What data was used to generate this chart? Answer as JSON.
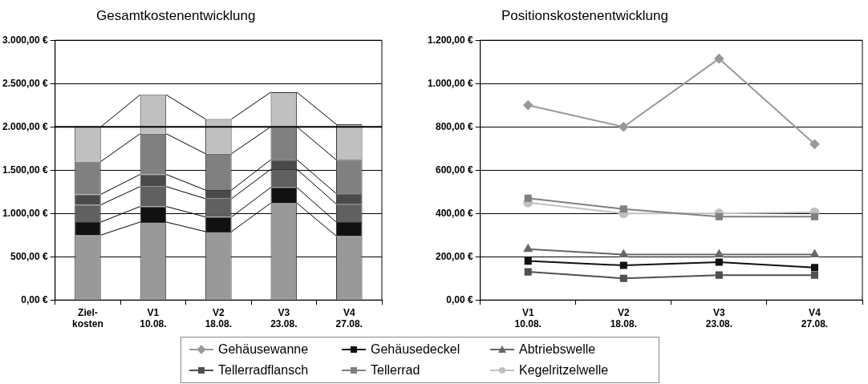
{
  "chart_data": [
    {
      "type": "bar",
      "title": "Gesamtkostenentwicklung",
      "stacked": true,
      "grid": "y",
      "legend": "bottom",
      "categories": [
        "Ziel-\nkosten",
        "V1\n10.08.",
        "V2\n18.08.",
        "V3\n23.08.",
        "V4\n27.08."
      ],
      "series": [
        {
          "name": "Gehäusewanne",
          "color": "#999999",
          "values": [
            750,
            900,
            790,
            1120,
            740
          ]
        },
        {
          "name": "Gehäusedeckel",
          "color": "#111111",
          "values": [
            150,
            180,
            170,
            180,
            160
          ]
        },
        {
          "name": "Abtriebswelle",
          "color": "#606060",
          "values": [
            200,
            230,
            210,
            210,
            210
          ]
        },
        {
          "name": "Tellerradflansch",
          "color": "#4a4a4a",
          "values": [
            120,
            140,
            100,
            110,
            120
          ]
        },
        {
          "name": "Tellerrad",
          "color": "#808080",
          "values": [
            380,
            470,
            420,
            380,
            390
          ]
        },
        {
          "name": "Kegelritzelwelle",
          "color": "#c0c0c0",
          "values": [
            400,
            450,
            400,
            400,
            410
          ]
        }
      ],
      "ylim": [
        0,
        3000
      ],
      "yticks": [
        {
          "value": 0,
          "label": "0,00 €"
        },
        {
          "value": 500,
          "label": "500,00 €"
        },
        {
          "value": 1000,
          "label": "1.000,00 €"
        },
        {
          "value": 1500,
          "label": "1.500,00 €"
        },
        {
          "value": 2000,
          "label": "2.000,00 €"
        },
        {
          "value": 2500,
          "label": "2.500,00 €"
        },
        {
          "value": 3000,
          "label": "3.000,00 €"
        }
      ],
      "ref_lines": [
        {
          "axis": "y",
          "value": 2000,
          "color": "#000000"
        }
      ]
    },
    {
      "type": "line",
      "title": "Positionskostenentwicklung",
      "grid": "y",
      "legend": "bottom",
      "categories": [
        "V1\n10.08.",
        "V2\n18.08.",
        "V3\n23.08.",
        "V4\n27.08."
      ],
      "series": [
        {
          "name": "Gehäusewanne",
          "color": "#999999",
          "marker": "diamond",
          "values": [
            900,
            800,
            1115,
            720
          ]
        },
        {
          "name": "Gehäusedeckel",
          "color": "#111111",
          "marker": "square",
          "values": [
            180,
            160,
            175,
            150
          ]
        },
        {
          "name": "Abtriebswelle",
          "color": "#666666",
          "marker": "triangle",
          "values": [
            235,
            210,
            210,
            210
          ]
        },
        {
          "name": "Tellerradflansch",
          "color": "#505050",
          "marker": "square",
          "values": [
            130,
            100,
            115,
            115
          ]
        },
        {
          "name": "Tellerrad",
          "color": "#808080",
          "marker": "square",
          "values": [
            470,
            420,
            385,
            385
          ]
        },
        {
          "name": "Kegelritzelwelle",
          "color": "#c0c0c0",
          "marker": "circle",
          "values": [
            450,
            400,
            400,
            405
          ]
        }
      ],
      "ylim": [
        0,
        1200
      ],
      "yticks": [
        {
          "value": 0,
          "label": "0,00 €"
        },
        {
          "value": 200,
          "label": "200,00 €"
        },
        {
          "value": 400,
          "label": "400,00 €"
        },
        {
          "value": 600,
          "label": "600,00 €"
        },
        {
          "value": 800,
          "label": "800,00 €"
        },
        {
          "value": 1000,
          "label": "1.000,00 €"
        },
        {
          "value": 1200,
          "label": "1.200,00 €"
        }
      ]
    }
  ]
}
